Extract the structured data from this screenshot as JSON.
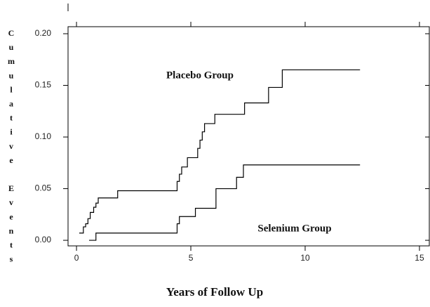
{
  "chart_data": {
    "type": "line",
    "step": "post",
    "x_label": "Years of Follow Up",
    "y_label": "Cumulative Events",
    "xlim": [
      -0.37,
      15.43
    ],
    "ylim": [
      -0.0054,
      0.2068
    ],
    "xticks": [
      0,
      5,
      10,
      15
    ],
    "yticks": [
      {
        "value": 0,
        "label": "0.00"
      },
      0.05,
      {
        "value": 0.1,
        "label": "0.10"
      },
      0.15,
      {
        "value": 0.2,
        "label": "0.20"
      }
    ],
    "grid": false,
    "annotations": [
      "Placebo Group",
      "Selenium Group"
    ],
    "series": [
      {
        "color": "#000000",
        "x": [
          0.12,
          0.3,
          0.4,
          0.5,
          0.6,
          0.75,
          0.85,
          0.95,
          1.8,
          4.4,
          4.5,
          4.6,
          4.85,
          5.3,
          5.4,
          5.5,
          5.6,
          6.05,
          7.35,
          8.4,
          9.0,
          12.4
        ],
        "values": [
          0.007,
          0.013,
          0.016,
          0.021,
          0.027,
          0.032,
          0.036,
          0.041,
          0.048,
          0.057,
          0.064,
          0.071,
          0.08,
          0.089,
          0.097,
          0.105,
          0.113,
          0.122,
          0.133,
          0.148,
          0.165,
          0.165
        ]
      },
      {
        "color": "#000000",
        "x": [
          0.55,
          0.85,
          4.4,
          4.5,
          5.2,
          6.1,
          7.0,
          7.3,
          12.4
        ],
        "values": [
          0,
          0.007,
          0.016,
          0.023,
          0.031,
          0.05,
          0.061,
          0.073,
          0.073
        ]
      }
    ]
  }
}
